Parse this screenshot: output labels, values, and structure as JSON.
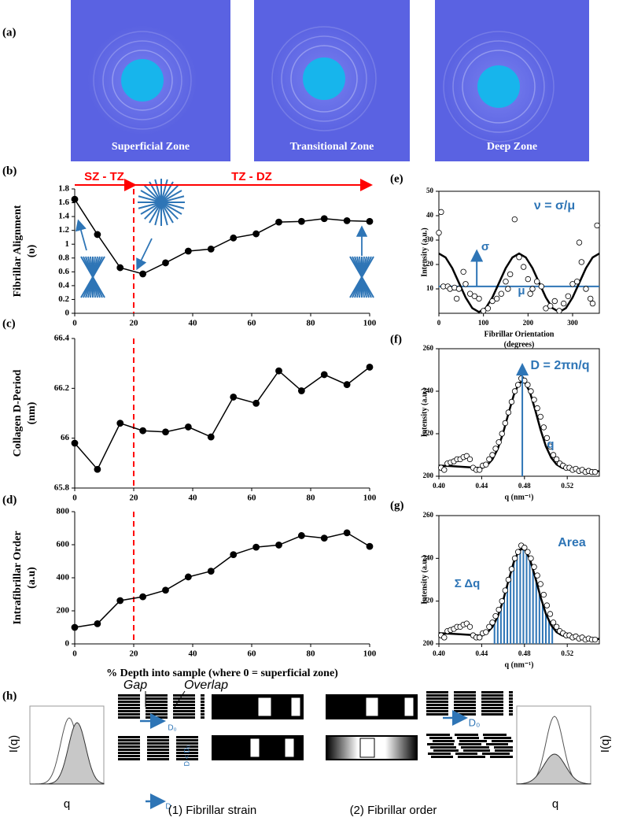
{
  "panel_a": {
    "panel": "(a)",
    "images": [
      {
        "caption": "Superficial Zone"
      },
      {
        "caption": "Transitional  Zone"
      },
      {
        "caption": "Deep Zone"
      }
    ]
  },
  "chart_data": [
    {
      "panel": "(b)",
      "type": "line",
      "ylabel": [
        "Fibrillar Alignment",
        "(υ)"
      ],
      "x": [
        0,
        7.7,
        15.4,
        23.1,
        30.8,
        38.5,
        46.2,
        53.8,
        61.5,
        69.2,
        76.9,
        84.6,
        92.3,
        100
      ],
      "values": [
        1.65,
        1.14,
        0.66,
        0.57,
        0.73,
        0.9,
        0.93,
        1.09,
        1.15,
        1.32,
        1.33,
        1.37,
        1.34,
        1.33
      ],
      "color": "#000000",
      "xlim": [
        0,
        100
      ],
      "xticks": [
        0,
        20,
        40,
        60,
        80,
        100
      ],
      "ylim": [
        0,
        1.8
      ],
      "yticks": [
        0,
        0.2,
        0.4,
        0.6,
        0.8,
        1,
        1.2,
        1.4,
        1.6,
        1.8
      ],
      "vline": 20,
      "vline_color": "#ff0000",
      "regions": [
        {
          "label": "SZ - TZ",
          "from": 0,
          "to": 20
        },
        {
          "label": "TZ - DZ",
          "from": 20,
          "to": 100
        }
      ]
    },
    {
      "panel": "(c)",
      "type": "line",
      "ylabel": [
        "Collagen D-Period",
        "(nm)"
      ],
      "x": [
        0,
        7.7,
        15.4,
        23.1,
        30.8,
        38.5,
        46.2,
        53.8,
        61.5,
        69.2,
        76.9,
        84.6,
        92.3,
        100
      ],
      "values": [
        65.98,
        65.875,
        66.06,
        66.03,
        66.025,
        66.045,
        66.005,
        66.165,
        66.14,
        66.27,
        66.19,
        66.255,
        66.215,
        66.285
      ],
      "color": "#000000",
      "xlim": [
        0,
        100
      ],
      "xticks": [
        0,
        20,
        40,
        60,
        80,
        100
      ],
      "ylim": [
        65.8,
        66.4
      ],
      "yticks": [
        65.8,
        66,
        66.2,
        66.4
      ],
      "vline": 20,
      "vline_color": "#ff0000"
    },
    {
      "panel": "(d)",
      "type": "line",
      "ylabel": [
        "Intrafibrillar Order",
        "(a.u)"
      ],
      "xlabel": [
        "% Depth into sample (where 0 = superficial zone)"
      ],
      "x": [
        0,
        7.7,
        15.4,
        23.1,
        30.8,
        38.5,
        46.2,
        53.8,
        61.5,
        69.2,
        76.9,
        84.6,
        92.3,
        100
      ],
      "values": [
        100,
        122,
        262,
        285,
        325,
        405,
        440,
        540,
        585,
        598,
        655,
        640,
        672,
        590
      ],
      "color": "#000000",
      "xlim": [
        0,
        100
      ],
      "xticks": [
        0,
        20,
        40,
        60,
        80,
        100
      ],
      "ylim": [
        0,
        800
      ],
      "yticks": [
        0,
        200,
        400,
        600,
        800
      ],
      "vline": 20,
      "vline_color": "#ff0000"
    },
    {
      "panel": "(e)",
      "type": "scatter",
      "box": true,
      "ylabel": [
        "Intensity (a.u.)"
      ],
      "xlabel": [
        "Fibrillar Orientation",
        "(degrees)"
      ],
      "x": [
        0,
        5,
        10,
        20,
        25,
        35,
        40,
        45,
        55,
        60,
        70,
        80,
        90,
        100,
        110,
        120,
        130,
        140,
        150,
        155,
        160,
        170,
        180,
        190,
        200,
        205,
        210,
        220,
        230,
        240,
        250,
        260,
        270,
        280,
        290,
        300,
        310,
        315,
        320,
        330,
        340,
        345,
        355
      ],
      "values": [
        33,
        41.5,
        11,
        11,
        10,
        10.5,
        6,
        10,
        17,
        12,
        8,
        7,
        6,
        1,
        2,
        5,
        6,
        8,
        13,
        10,
        16,
        38.5,
        23,
        19,
        14,
        8,
        10,
        13,
        11,
        2,
        3,
        5,
        1,
        4,
        7,
        12,
        13,
        29,
        21,
        10,
        6,
        4,
        36
      ],
      "color": "#000000",
      "fit": {
        "x": [
          0,
          15,
          30,
          45,
          60,
          75,
          90,
          105,
          120,
          135,
          150,
          165,
          180,
          195,
          210,
          225,
          240,
          255,
          270,
          285,
          300,
          315,
          330,
          345,
          360
        ],
        "values": [
          24.5,
          22.9,
          18.5,
          12.5,
          6.5,
          2.1,
          0.5,
          2.1,
          6.5,
          12.5,
          18.5,
          22.9,
          24.5,
          22.9,
          18.5,
          12.5,
          6.5,
          2.1,
          0.5,
          2.1,
          6.5,
          12.5,
          18.5,
          22.9,
          24.5
        ]
      },
      "hline": 11,
      "accent_color": "#2e75b6",
      "xlim": [
        0,
        360
      ],
      "xticks": [
        0,
        100,
        200,
        300
      ],
      "ylim": [
        0,
        50
      ],
      "yticks": [
        10,
        20,
        30,
        40,
        50
      ],
      "annotations": [
        "ν = σ/μ",
        "σ",
        "μ"
      ]
    },
    {
      "panel": "(f)",
      "type": "scatter",
      "box": true,
      "ylabel": [
        "Intensity (a.u.)"
      ],
      "xlabel": [
        "q (nm⁻¹)"
      ],
      "x": [
        0.402,
        0.405,
        0.408,
        0.411,
        0.414,
        0.417,
        0.42,
        0.423,
        0.426,
        0.429,
        0.432,
        0.435,
        0.438,
        0.441,
        0.444,
        0.447,
        0.45,
        0.453,
        0.456,
        0.459,
        0.462,
        0.465,
        0.468,
        0.471,
        0.474,
        0.477,
        0.48,
        0.483,
        0.486,
        0.489,
        0.492,
        0.495,
        0.498,
        0.501,
        0.504,
        0.507,
        0.51,
        0.513,
        0.516,
        0.519,
        0.522,
        0.525,
        0.528,
        0.531,
        0.534,
        0.537,
        0.54,
        0.543,
        0.546
      ],
      "values": [
        204,
        203,
        206,
        206.5,
        207,
        208,
        208,
        209,
        209.5,
        208,
        204,
        203,
        203,
        205,
        205.5,
        208,
        210,
        213,
        216,
        220,
        225,
        230,
        235,
        240,
        243,
        246,
        245,
        243,
        240,
        236,
        232,
        228,
        223,
        218,
        214,
        210,
        208,
        206,
        205,
        204,
        204,
        203,
        203.5,
        202.5,
        203,
        202,
        202.5,
        202,
        202
      ],
      "color": "#000000",
      "fit": {
        "x": [
          0.4,
          0.41,
          0.42,
          0.43,
          0.435,
          0.44,
          0.445,
          0.45,
          0.455,
          0.46,
          0.465,
          0.47,
          0.475,
          0.48,
          0.485,
          0.49,
          0.495,
          0.5,
          0.505,
          0.51,
          0.515,
          0.52,
          0.525,
          0.53,
          0.54,
          0.55
        ],
        "values": [
          205,
          204.8,
          204.5,
          204.2,
          204,
          203.8,
          205.1,
          207.9,
          212.8,
          220.3,
          229.4,
          238.2,
          244,
          244.5,
          239.7,
          231.3,
          222,
          214.1,
          208.7,
          205.5,
          204,
          203.3,
          203,
          202.8,
          202.5,
          202.3
        ]
      },
      "marker_x": 0.478,
      "accent_color": "#2e75b6",
      "xlim": [
        0.4,
        0.55
      ],
      "xticks": [
        {
          "value": 0.4,
          "label": "0.40"
        },
        0.44,
        0.48,
        0.52
      ],
      "ylim": [
        200,
        260
      ],
      "yticks": [
        200,
        220,
        240,
        260
      ],
      "annotations": [
        "D = 2πn/q",
        "q"
      ]
    },
    {
      "panel": "(g)",
      "type": "scatter",
      "box": true,
      "ylabel": [
        "Intensity (a.u.)"
      ],
      "xlabel": [
        "q (nm⁻¹)"
      ],
      "x": [
        0.402,
        0.405,
        0.408,
        0.411,
        0.414,
        0.417,
        0.42,
        0.423,
        0.426,
        0.429,
        0.432,
        0.435,
        0.438,
        0.441,
        0.444,
        0.447,
        0.45,
        0.453,
        0.456,
        0.459,
        0.462,
        0.465,
        0.468,
        0.471,
        0.474,
        0.477,
        0.48,
        0.483,
        0.486,
        0.489,
        0.492,
        0.495,
        0.498,
        0.501,
        0.504,
        0.507,
        0.51,
        0.513,
        0.516,
        0.519,
        0.522,
        0.525,
        0.528,
        0.531,
        0.534,
        0.537,
        0.54,
        0.543,
        0.546
      ],
      "values": [
        204,
        203,
        206,
        206.5,
        207,
        208,
        208,
        209,
        209.5,
        208,
        204,
        203,
        203,
        205,
        205.5,
        208,
        210,
        213,
        216,
        220,
        225,
        230,
        235,
        240,
        243,
        246,
        245,
        243,
        240,
        236,
        232,
        228,
        223,
        218,
        214,
        210,
        208,
        206,
        205,
        204,
        204,
        203,
        203.5,
        202.5,
        203,
        202,
        202.5,
        202,
        202
      ],
      "color": "#000000",
      "fit": {
        "x": [
          0.4,
          0.41,
          0.42,
          0.43,
          0.435,
          0.44,
          0.445,
          0.45,
          0.455,
          0.46,
          0.465,
          0.47,
          0.475,
          0.48,
          0.485,
          0.49,
          0.495,
          0.5,
          0.505,
          0.51,
          0.515,
          0.52,
          0.525,
          0.53,
          0.54,
          0.55
        ],
        "values": [
          205,
          204.8,
          204.5,
          204.2,
          204,
          203.8,
          205.1,
          207.9,
          212.8,
          220.3,
          229.4,
          238.2,
          244,
          244.5,
          239.7,
          231.3,
          222,
          214.1,
          208.7,
          205.5,
          204,
          203.3,
          203,
          202.8,
          202.5,
          202.3
        ]
      },
      "bars": {
        "x": [
          0.452,
          0.455,
          0.458,
          0.461,
          0.464,
          0.467,
          0.47,
          0.473,
          0.476,
          0.479,
          0.482,
          0.485,
          0.488,
          0.491,
          0.494,
          0.497,
          0.5,
          0.503,
          0.506
        ],
        "values": [
          209.6,
          212.8,
          217,
          222,
          227.5,
          233.1,
          238.2,
          242.2,
          244.5,
          245,
          243.2,
          239.7,
          234.9,
          229.4,
          223.8,
          218.6,
          214.1,
          210.6,
          207.9
        ]
      },
      "accent_color": "#2e75b6",
      "xlim": [
        0.4,
        0.55
      ],
      "xticks": [
        {
          "value": 0.4,
          "label": "0.40"
        },
        0.44,
        0.48,
        0.52
      ],
      "ylim": [
        200,
        260
      ],
      "yticks": [
        200,
        220,
        240,
        260
      ],
      "annotations": [
        "Area",
        "Σ Δq"
      ]
    }
  ],
  "panel_h": {
    "panel": "(h)",
    "left_ylabel": "I(q)",
    "left_xlabel": "q",
    "gap": "Gap",
    "overlap": "Overlap",
    "d0_left": "D₀",
    "d_less": "D < D₀",
    "d": "D",
    "caption_1": "(1) Fibrillar strain",
    "caption_2": "(2) Fibrillar order",
    "d0_right": "D₀",
    "right_ylabel": "I(q)",
    "right_xlabel": "q"
  }
}
